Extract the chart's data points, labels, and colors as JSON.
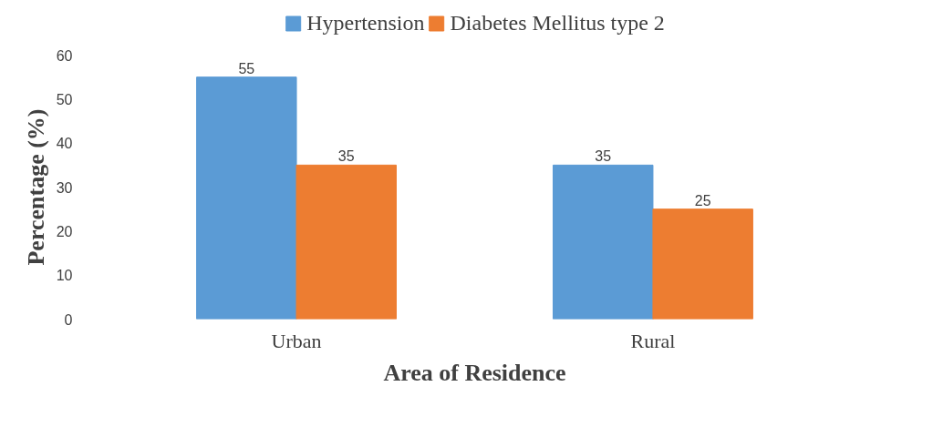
{
  "chart_data": {
    "type": "bar",
    "categories": [
      "Urban",
      "Rural"
    ],
    "series": [
      {
        "name": "Hypertension",
        "color": "#5b9bd5",
        "values": [
          55,
          35
        ]
      },
      {
        "name": "Diabetes Mellitus type 2",
        "color": "#ed7d31",
        "values": [
          35,
          25
        ]
      }
    ],
    "xlabel": "Area of Residence",
    "ylabel": "Percentage (%)",
    "ylim": [
      0,
      60
    ],
    "yticks": [
      0,
      10,
      20,
      30,
      40,
      50,
      60
    ],
    "grid": false,
    "legend": "top",
    "data_labels": true
  }
}
